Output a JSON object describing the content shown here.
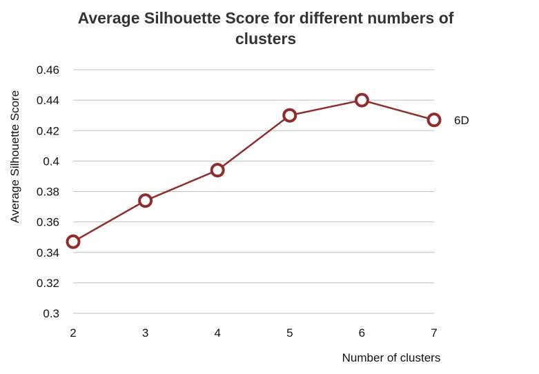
{
  "chart_data": {
    "type": "line",
    "title_lines": [
      "Average Silhouette Score for different numbers of",
      "clusters"
    ],
    "xlabel": "Number of clusters",
    "ylabel": "Average Silhouette Score",
    "x": [
      2,
      3,
      4,
      5,
      6,
      7
    ],
    "x_tick_labels": [
      "2",
      "3",
      "4",
      "5",
      "6",
      "7"
    ],
    "ylim": [
      0.3,
      0.46
    ],
    "y_ticks": [
      0.3,
      0.32,
      0.34,
      0.36,
      0.38,
      0.4,
      0.42,
      0.44,
      0.46
    ],
    "y_tick_labels": [
      "0.3",
      "0.32",
      "0.34",
      "0.36",
      "0.38",
      "0.4",
      "0.42",
      "0.44",
      "0.46"
    ],
    "grid": "horizontal",
    "series": [
      {
        "name": "6D",
        "values": [
          0.347,
          0.374,
          0.394,
          0.43,
          0.44,
          0.427
        ],
        "color": "#922B2B",
        "marker": "hollow-circle"
      }
    ]
  }
}
